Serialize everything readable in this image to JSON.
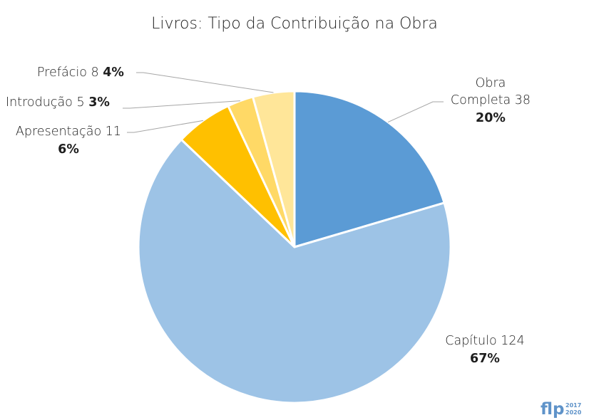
{
  "chart_data": {
    "type": "pie",
    "title": "Livros: Tipo da Contribuição na Obra",
    "slices": [
      {
        "label": "Obra Completa",
        "value": 38,
        "percent": "20%",
        "color": "#5b9bd5"
      },
      {
        "label": "Capítulo",
        "value": 124,
        "percent": "67%",
        "color": "#9dc3e6"
      },
      {
        "label": "Apresentação",
        "value": 11,
        "percent": "6%",
        "color": "#ffc000"
      },
      {
        "label": "Introdução",
        "value": 5,
        "percent": "3%",
        "color": "#ffd966"
      },
      {
        "label": "Prefácio",
        "value": 8,
        "percent": "4%",
        "color": "#ffe699"
      }
    ]
  },
  "logo": {
    "text": "flp",
    "year_top": "2017",
    "year_bottom": "2020"
  }
}
